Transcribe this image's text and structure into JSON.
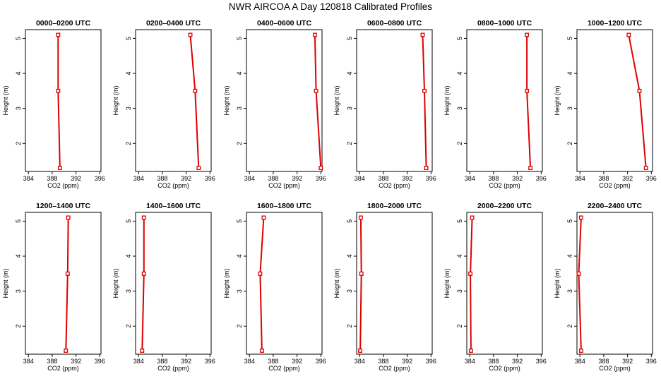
{
  "figure": {
    "title": "NWR AIRCOA A  Day 120818  Calibrated Profiles"
  },
  "colors": {
    "series": "#dd0000",
    "axis": "#000000"
  },
  "chart_data": [
    {
      "type": "line",
      "title": "0000–0200 UTC",
      "xlabel": "CO2 (ppm)",
      "ylabel": "Height (m)",
      "xlim": [
        383.5,
        396.2
      ],
      "ylim": [
        1.2,
        5.25
      ],
      "xticks": [
        "384",
        "388",
        "392",
        "396"
      ],
      "yticks": [
        "2",
        "3",
        "4",
        "5"
      ],
      "series": [
        {
          "x": [
            389.3,
            389.0,
            389.0
          ],
          "y": [
            1.3,
            3.5,
            5.1
          ]
        }
      ]
    },
    {
      "type": "line",
      "title": "0200–0400 UTC",
      "xlabel": "CO2 (ppm)",
      "ylabel": "Height (m)",
      "xlim": [
        383.5,
        396.2
      ],
      "ylim": [
        1.2,
        5.25
      ],
      "xticks": [
        "384",
        "388",
        "392",
        "396"
      ],
      "yticks": [
        "2",
        "3",
        "4",
        "5"
      ],
      "series": [
        {
          "x": [
            394.1,
            393.5,
            392.7
          ],
          "y": [
            1.3,
            3.5,
            5.1
          ]
        }
      ]
    },
    {
      "type": "line",
      "title": "0400–0600 UTC",
      "xlabel": "CO2 (ppm)",
      "ylabel": "Height (m)",
      "xlim": [
        383.5,
        396.2
      ],
      "ylim": [
        1.2,
        5.25
      ],
      "xticks": [
        "384",
        "388",
        "392",
        "396"
      ],
      "yticks": [
        "2",
        "3",
        "4",
        "5"
      ],
      "series": [
        {
          "x": [
            396.0,
            395.2,
            395.0
          ],
          "y": [
            1.3,
            3.5,
            5.1
          ]
        }
      ]
    },
    {
      "type": "line",
      "title": "0600–0800 UTC",
      "xlabel": "CO2 (ppm)",
      "ylabel": "Height (m)",
      "xlim": [
        383.5,
        396.2
      ],
      "ylim": [
        1.2,
        5.25
      ],
      "xticks": [
        "384",
        "388",
        "392",
        "396"
      ],
      "yticks": [
        "2",
        "3",
        "4",
        "5"
      ],
      "series": [
        {
          "x": [
            395.2,
            394.9,
            394.6
          ],
          "y": [
            1.3,
            3.5,
            5.1
          ]
        }
      ]
    },
    {
      "type": "line",
      "title": "0800–1000 UTC",
      "xlabel": "CO2 (ppm)",
      "ylabel": "Height (m)",
      "xlim": [
        383.5,
        396.2
      ],
      "ylim": [
        1.2,
        5.25
      ],
      "xticks": [
        "384",
        "388",
        "392",
        "396"
      ],
      "yticks": [
        "2",
        "3",
        "4",
        "5"
      ],
      "series": [
        {
          "x": [
            394.2,
            393.6,
            393.6
          ],
          "y": [
            1.3,
            3.5,
            5.1
          ]
        }
      ]
    },
    {
      "type": "line",
      "title": "1000–1200 UTC",
      "xlabel": "CO2 (ppm)",
      "ylabel": "Height (m)",
      "xlim": [
        383.5,
        396.2
      ],
      "ylim": [
        1.2,
        5.25
      ],
      "xticks": [
        "384",
        "388",
        "392",
        "396"
      ],
      "yticks": [
        "2",
        "3",
        "4",
        "5"
      ],
      "series": [
        {
          "x": [
            395.1,
            394.0,
            392.2
          ],
          "y": [
            1.3,
            3.5,
            5.1
          ]
        }
      ]
    },
    {
      "type": "line",
      "title": "1200–1400 UTC",
      "xlabel": "CO2 (ppm)",
      "ylabel": "Height (m)",
      "xlim": [
        383.5,
        396.2
      ],
      "ylim": [
        1.2,
        5.25
      ],
      "xticks": [
        "384",
        "388",
        "392",
        "396"
      ],
      "yticks": [
        "2",
        "3",
        "4",
        "5"
      ],
      "series": [
        {
          "x": [
            390.3,
            390.6,
            390.7
          ],
          "y": [
            1.3,
            3.5,
            5.1
          ]
        }
      ]
    },
    {
      "type": "line",
      "title": "1400–1600 UTC",
      "xlabel": "CO2 (ppm)",
      "ylabel": "Height (m)",
      "xlim": [
        383.5,
        396.2
      ],
      "ylim": [
        1.2,
        5.25
      ],
      "xticks": [
        "384",
        "388",
        "392",
        "396"
      ],
      "yticks": [
        "2",
        "3",
        "4",
        "5"
      ],
      "series": [
        {
          "x": [
            384.6,
            384.9,
            384.9
          ],
          "y": [
            1.3,
            3.5,
            5.1
          ]
        }
      ]
    },
    {
      "type": "line",
      "title": "1600–1800 UTC",
      "xlabel": "CO2 (ppm)",
      "ylabel": "Height (m)",
      "xlim": [
        383.5,
        396.2
      ],
      "ylim": [
        1.2,
        5.25
      ],
      "xticks": [
        "384",
        "388",
        "392",
        "396"
      ],
      "yticks": [
        "2",
        "3",
        "4",
        "5"
      ],
      "series": [
        {
          "x": [
            386.1,
            385.8,
            386.4
          ],
          "y": [
            1.3,
            3.5,
            5.1
          ]
        }
      ]
    },
    {
      "type": "line",
      "title": "1800–2000 UTC",
      "xlabel": "CO2 (ppm)",
      "ylabel": "Height (m)",
      "xlim": [
        383.5,
        396.2
      ],
      "ylim": [
        1.2,
        5.25
      ],
      "xticks": [
        "384",
        "388",
        "392",
        "396"
      ],
      "yticks": [
        "2",
        "3",
        "4",
        "5"
      ],
      "series": [
        {
          "x": [
            384.1,
            384.3,
            384.2
          ],
          "y": [
            1.3,
            3.5,
            5.1
          ]
        }
      ]
    },
    {
      "type": "line",
      "title": "2000–2200 UTC",
      "xlabel": "CO2 (ppm)",
      "ylabel": "Height (m)",
      "xlim": [
        383.5,
        396.2
      ],
      "ylim": [
        1.2,
        5.25
      ],
      "xticks": [
        "384",
        "388",
        "392",
        "396"
      ],
      "yticks": [
        "2",
        "3",
        "4",
        "5"
      ],
      "series": [
        {
          "x": [
            384.2,
            384.1,
            384.4
          ],
          "y": [
            1.3,
            3.5,
            5.1
          ]
        }
      ]
    },
    {
      "type": "line",
      "title": "2200–2400 UTC",
      "xlabel": "CO2 (ppm)",
      "ylabel": "Height (m)",
      "xlim": [
        383.5,
        396.2
      ],
      "ylim": [
        1.2,
        5.25
      ],
      "xticks": [
        "384",
        "388",
        "392",
        "396"
      ],
      "yticks": [
        "2",
        "3",
        "4",
        "5"
      ],
      "series": [
        {
          "x": [
            384.2,
            383.8,
            384.2
          ],
          "y": [
            1.3,
            3.5,
            5.1
          ]
        }
      ]
    }
  ]
}
